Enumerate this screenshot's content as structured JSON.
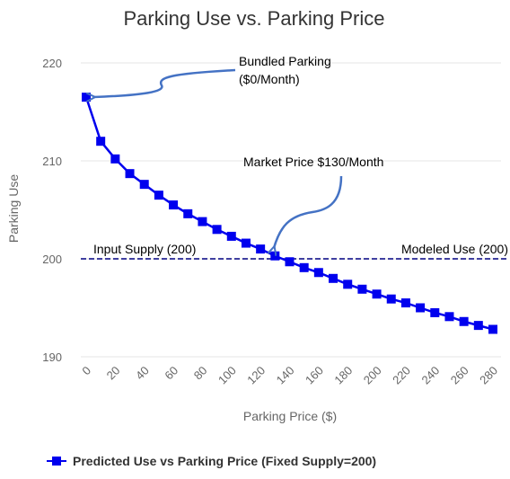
{
  "colors": {
    "series": "#0000ee",
    "grid": "#e6e6e6",
    "ref_line": "#000080",
    "arrow": "#4472c4",
    "text": "#333333",
    "axis_text": "#666666"
  },
  "chart_data": {
    "type": "line",
    "title": "Parking Use vs. Parking Price",
    "xlabel": "Parking Price ($)",
    "ylabel": "Parking Use",
    "xlim": [
      0,
      280
    ],
    "ylim": [
      190,
      220
    ],
    "x_ticks": [
      "0",
      "20",
      "40",
      "60",
      "80",
      "100",
      "120",
      "140",
      "160",
      "180",
      "200",
      "220",
      "240",
      "260",
      "280"
    ],
    "y_ticks": [
      "190",
      "200",
      "210",
      "220"
    ],
    "grid": true,
    "legend_position": "bottom-left",
    "series": [
      {
        "name": "Predicted Use vs Parking Price (Fixed Supply=200)",
        "marker": "square",
        "x": [
          0,
          10,
          20,
          30,
          40,
          50,
          60,
          70,
          80,
          90,
          100,
          110,
          120,
          130,
          140,
          150,
          160,
          170,
          180,
          190,
          200,
          210,
          220,
          230,
          240,
          250,
          260,
          270,
          280
        ],
        "y": [
          216.5,
          212.0,
          210.2,
          208.7,
          207.6,
          206.5,
          205.5,
          204.6,
          203.8,
          203.0,
          202.3,
          201.6,
          201.0,
          200.3,
          199.7,
          199.1,
          198.6,
          198.0,
          197.4,
          196.9,
          196.4,
          195.9,
          195.5,
          195.0,
          194.5,
          194.1,
          193.6,
          193.2,
          192.8
        ]
      }
    ],
    "reference_line": {
      "y": 200,
      "label_left": "Input Supply (200)",
      "label_right": "Modeled Use (200)"
    },
    "annotations": [
      {
        "line1": "Bundled Parking",
        "line2": "($0/Month)",
        "target_x": 0,
        "target_y": 216.5
      },
      {
        "line1": "Market Price $130/Month",
        "line2": "",
        "target_x": 130,
        "target_y": 200.3
      }
    ]
  }
}
